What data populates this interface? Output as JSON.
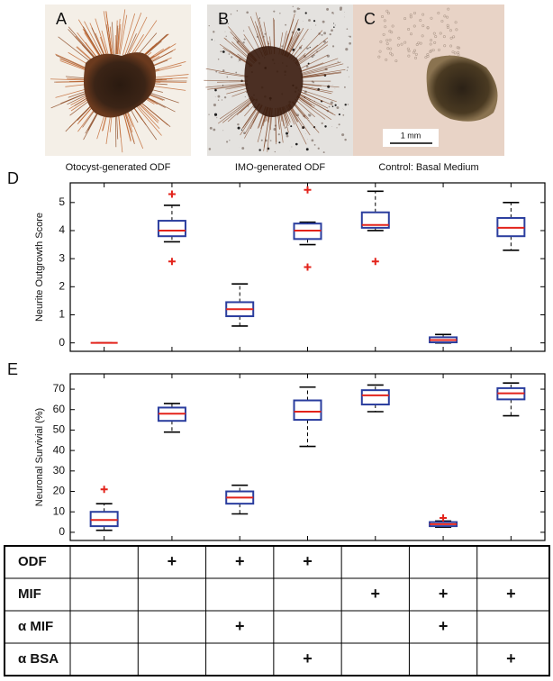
{
  "panels": [
    {
      "label": "A",
      "caption": "Otocyst-generated ODF"
    },
    {
      "label": "B",
      "caption": "IMO-generated ODF"
    },
    {
      "label": "C",
      "caption": "Control: Basal Medium",
      "scale_bar": "1 mm"
    }
  ],
  "chart_data": [
    {
      "type": "box",
      "panel_label": "D",
      "y_label": "Neurite Outgrowth Score",
      "ylim": [
        -0.3,
        5.7
      ],
      "yticks": [
        0,
        1,
        2,
        3,
        4,
        5
      ],
      "box_color": "#2a3d9e",
      "median_color": "#e3231b",
      "outlier_color": "#e3231b",
      "boxes": [
        {
          "min": 0,
          "q1": 0,
          "median": 0,
          "q3": 0,
          "max": 0
        },
        {
          "min": 3.6,
          "q1": 3.8,
          "median": 4.0,
          "q3": 4.35,
          "max": 4.9,
          "outliers": [
            5.3,
            2.9
          ]
        },
        {
          "min": 0.6,
          "q1": 0.95,
          "median": 1.2,
          "q3": 1.45,
          "max": 2.1
        },
        {
          "min": 3.5,
          "q1": 3.7,
          "median": 4.0,
          "q3": 4.25,
          "max": 4.3,
          "outliers": [
            5.45,
            2.7
          ]
        },
        {
          "min": 4.0,
          "q1": 4.1,
          "median": 4.2,
          "q3": 4.65,
          "max": 5.4,
          "outliers": [
            2.9
          ]
        },
        {
          "min": 0.0,
          "q1": 0.02,
          "median": 0.1,
          "q3": 0.2,
          "max": 0.3
        },
        {
          "min": 3.3,
          "q1": 3.8,
          "median": 4.1,
          "q3": 4.45,
          "max": 5.0
        }
      ]
    },
    {
      "type": "box",
      "panel_label": "E",
      "y_label": "Neuronal Survivial (%)",
      "ylim": [
        -4,
        77.5
      ],
      "yticks": [
        0,
        10,
        20,
        30,
        40,
        50,
        60,
        70
      ],
      "box_color": "#2a3d9e",
      "median_color": "#e3231b",
      "outlier_color": "#e3231b",
      "boxes": [
        {
          "min": 1,
          "q1": 3,
          "median": 6,
          "q3": 10,
          "max": 14,
          "outliers": [
            21
          ]
        },
        {
          "min": 49,
          "q1": 54.5,
          "median": 58,
          "q3": 61,
          "max": 63
        },
        {
          "min": 9,
          "q1": 14,
          "median": 17,
          "q3": 20,
          "max": 23
        },
        {
          "min": 42,
          "q1": 55,
          "median": 59,
          "q3": 64.5,
          "max": 71
        },
        {
          "min": 59,
          "q1": 62.5,
          "median": 67,
          "q3": 69.5,
          "max": 72
        },
        {
          "min": 2.5,
          "q1": 3,
          "median": 4,
          "q3": 5,
          "max": 5.5,
          "outliers": [
            7
          ]
        },
        {
          "min": 57,
          "q1": 65,
          "median": 68,
          "q3": 70.5,
          "max": 73
        }
      ]
    }
  ],
  "table": {
    "rows": [
      {
        "label": "ODF",
        "cells": [
          null,
          "+",
          "+",
          "+",
          null,
          null,
          null
        ]
      },
      {
        "label": "MIF",
        "cells": [
          null,
          null,
          null,
          null,
          "+",
          "+",
          "+"
        ]
      },
      {
        "label": "α MIF",
        "cells": [
          null,
          null,
          "+",
          null,
          null,
          "+",
          null
        ]
      },
      {
        "label": "α BSA",
        "cells": [
          null,
          null,
          null,
          "+",
          null,
          null,
          "+"
        ]
      }
    ]
  }
}
